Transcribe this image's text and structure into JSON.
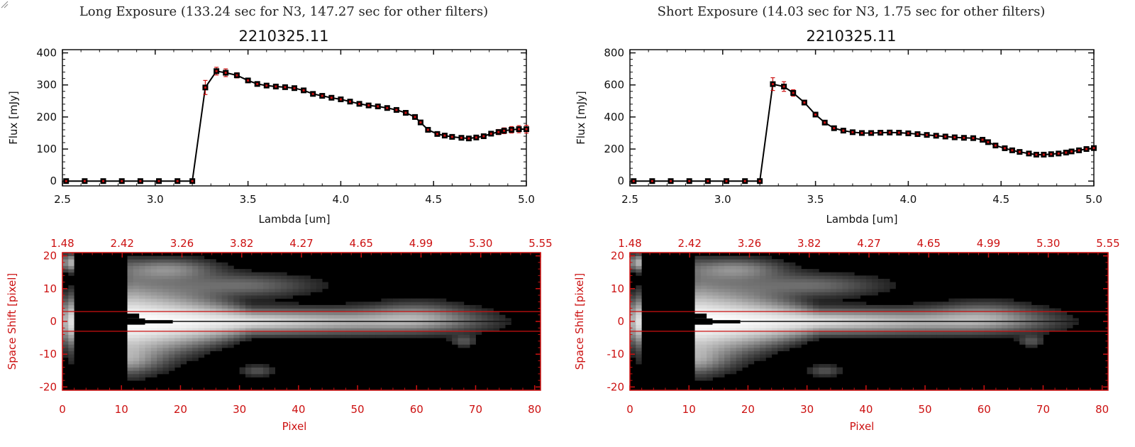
{
  "chart_data": [
    {
      "panel": "left",
      "type": "line",
      "super_title": "Long Exposure (133.24 sec for N3, 147.27 sec for other filters)",
      "title": "2210325.11",
      "xlabel": "Lambda [um]",
      "ylabel": "Flux [mJy]",
      "xlim": [
        2.5,
        5.0
      ],
      "ylim": [
        -15,
        410
      ],
      "xticks": [
        "2.5",
        "3.0",
        "3.5",
        "4.0",
        "4.5",
        "5.0"
      ],
      "xtick_values": [
        2.5,
        3.0,
        3.5,
        4.0,
        4.5,
        5.0
      ],
      "yticks": [
        "0",
        "100",
        "200",
        "300",
        "400"
      ],
      "ytick_values": [
        0,
        100,
        200,
        300,
        400
      ],
      "x": [
        2.52,
        2.62,
        2.72,
        2.82,
        2.92,
        3.02,
        3.12,
        3.2,
        3.27,
        3.33,
        3.38,
        3.44,
        3.5,
        3.55,
        3.6,
        3.65,
        3.7,
        3.75,
        3.8,
        3.85,
        3.9,
        3.95,
        4.0,
        4.05,
        4.1,
        4.15,
        4.2,
        4.25,
        4.3,
        4.35,
        4.4,
        4.43,
        4.47,
        4.52,
        4.56,
        4.6,
        4.65,
        4.69,
        4.73,
        4.77,
        4.81,
        4.85,
        4.88,
        4.92,
        4.96,
        5.0
      ],
      "y": [
        0,
        0,
        0,
        0,
        0,
        0,
        0,
        0,
        292,
        343,
        338,
        330,
        314,
        303,
        298,
        295,
        293,
        290,
        283,
        272,
        266,
        260,
        255,
        248,
        241,
        236,
        233,
        228,
        222,
        213,
        200,
        183,
        160,
        147,
        142,
        138,
        135,
        133,
        136,
        140,
        148,
        153,
        157,
        160,
        162,
        162
      ],
      "errors": [
        3,
        3,
        3,
        3,
        3,
        3,
        3,
        3,
        22,
        12,
        12,
        8,
        6,
        6,
        6,
        5,
        5,
        5,
        5,
        5,
        5,
        5,
        5,
        5,
        5,
        5,
        5,
        5,
        5,
        5,
        5,
        5,
        5,
        5,
        5,
        5,
        5,
        5,
        5,
        6,
        7,
        8,
        9,
        10,
        11,
        12
      ],
      "image": {
        "xlabel": "Pixel",
        "ylabel": "Space Shift [pixel]",
        "xlim": [
          0,
          81
        ],
        "ylim": [
          -21,
          21
        ],
        "xticks": [
          "0",
          "10",
          "20",
          "30",
          "40",
          "50",
          "60",
          "70",
          "80"
        ],
        "xtick_values": [
          0,
          10,
          20,
          30,
          40,
          50,
          60,
          70,
          80
        ],
        "yticks": [
          "20",
          "10",
          "0",
          "-10",
          "-20"
        ],
        "ytick_values": [
          20,
          10,
          0,
          -10,
          -20
        ],
        "top_ticks": [
          "1.48",
          "2.42",
          "3.26",
          "3.82",
          "4.27",
          "4.65",
          "4.99",
          "5.30",
          "5.55"
        ],
        "extraction_window": [
          -3,
          3
        ]
      }
    },
    {
      "panel": "right",
      "type": "line",
      "super_title": "Short Exposure (14.03 sec for N3, 1.75 sec for other filters)",
      "title": "2210325.11",
      "xlabel": "Lambda [um]",
      "ylabel": "Flux [mJy]",
      "xlim": [
        2.5,
        5.0
      ],
      "ylim": [
        -30,
        820
      ],
      "xticks": [
        "2.5",
        "3.0",
        "3.5",
        "4.0",
        "4.5",
        "5.0"
      ],
      "xtick_values": [
        2.5,
        3.0,
        3.5,
        4.0,
        4.5,
        5.0
      ],
      "yticks": [
        "0",
        "200",
        "400",
        "600",
        "800"
      ],
      "ytick_values": [
        0,
        200,
        400,
        600,
        800
      ],
      "x": [
        2.52,
        2.62,
        2.72,
        2.82,
        2.92,
        3.02,
        3.12,
        3.2,
        3.27,
        3.33,
        3.38,
        3.44,
        3.5,
        3.55,
        3.6,
        3.65,
        3.7,
        3.75,
        3.8,
        3.85,
        3.9,
        3.95,
        4.0,
        4.05,
        4.1,
        4.15,
        4.2,
        4.25,
        4.3,
        4.35,
        4.4,
        4.43,
        4.47,
        4.52,
        4.56,
        4.6,
        4.65,
        4.69,
        4.73,
        4.77,
        4.81,
        4.85,
        4.88,
        4.92,
        4.96,
        5.0
      ],
      "y": [
        0,
        0,
        0,
        0,
        0,
        0,
        0,
        0,
        605,
        590,
        550,
        490,
        415,
        365,
        330,
        315,
        305,
        300,
        300,
        302,
        303,
        302,
        298,
        293,
        288,
        283,
        278,
        273,
        270,
        268,
        258,
        243,
        222,
        205,
        192,
        182,
        172,
        165,
        165,
        168,
        172,
        178,
        185,
        192,
        200,
        206
      ],
      "errors": [
        6,
        6,
        6,
        6,
        6,
        6,
        6,
        6,
        40,
        30,
        20,
        15,
        10,
        8,
        7,
        6,
        6,
        6,
        6,
        6,
        6,
        6,
        6,
        6,
        6,
        6,
        6,
        6,
        6,
        6,
        6,
        6,
        6,
        6,
        6,
        6,
        6,
        6,
        6,
        6,
        6,
        6,
        6,
        6,
        7,
        8
      ],
      "image": {
        "xlabel": "Pixel",
        "ylabel": "Space Shift [pixel]",
        "xlim": [
          0,
          81
        ],
        "ylim": [
          -21,
          21
        ],
        "xticks": [
          "0",
          "10",
          "20",
          "30",
          "40",
          "50",
          "60",
          "70",
          "80"
        ],
        "xtick_values": [
          0,
          10,
          20,
          30,
          40,
          50,
          60,
          70,
          80
        ],
        "yticks": [
          "20",
          "10",
          "0",
          "-10",
          "-20"
        ],
        "ytick_values": [
          20,
          10,
          0,
          -10,
          -20
        ],
        "top_ticks": [
          "1.48",
          "2.42",
          "3.26",
          "3.82",
          "4.27",
          "4.65",
          "4.99",
          "5.30",
          "5.55"
        ],
        "extraction_window": [
          -3,
          3
        ]
      }
    }
  ],
  "colors": {
    "axis": "#111111",
    "line": "#000000",
    "marker": "#000000",
    "error_bar": "#cc1111",
    "image_frame": "#cc1111",
    "window_line": "#cc1111"
  }
}
